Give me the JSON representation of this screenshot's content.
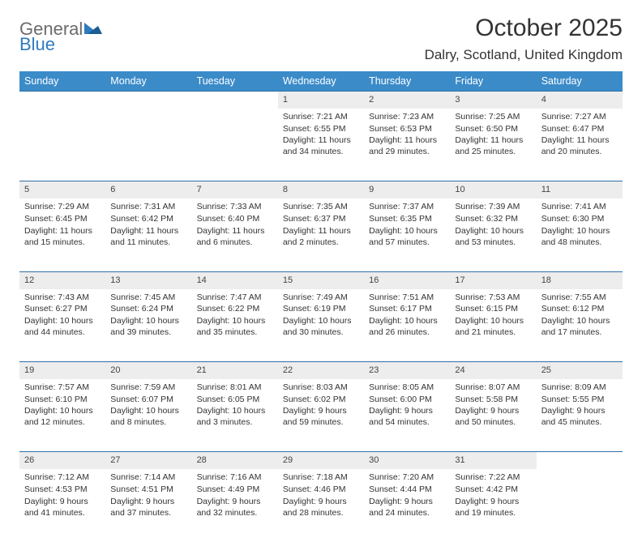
{
  "logo": {
    "word1": "General",
    "word2": "Blue"
  },
  "title": "October 2025",
  "location": "Dalry, Scotland, United Kingdom",
  "colors": {
    "header_bg": "#3b8bc9",
    "header_text": "#ffffff",
    "daynum_bg": "#ededed",
    "border": "#2f6fa6",
    "logo_gray": "#6b6b6b",
    "logo_blue": "#2f7bbf",
    "text": "#333333"
  },
  "day_headers": [
    "Sunday",
    "Monday",
    "Tuesday",
    "Wednesday",
    "Thursday",
    "Friday",
    "Saturday"
  ],
  "weeks": [
    [
      null,
      null,
      null,
      {
        "n": "1",
        "sunrise": "7:21 AM",
        "sunset": "6:55 PM",
        "daylight": "11 hours and 34 minutes."
      },
      {
        "n": "2",
        "sunrise": "7:23 AM",
        "sunset": "6:53 PM",
        "daylight": "11 hours and 29 minutes."
      },
      {
        "n": "3",
        "sunrise": "7:25 AM",
        "sunset": "6:50 PM",
        "daylight": "11 hours and 25 minutes."
      },
      {
        "n": "4",
        "sunrise": "7:27 AM",
        "sunset": "6:47 PM",
        "daylight": "11 hours and 20 minutes."
      }
    ],
    [
      {
        "n": "5",
        "sunrise": "7:29 AM",
        "sunset": "6:45 PM",
        "daylight": "11 hours and 15 minutes."
      },
      {
        "n": "6",
        "sunrise": "7:31 AM",
        "sunset": "6:42 PM",
        "daylight": "11 hours and 11 minutes."
      },
      {
        "n": "7",
        "sunrise": "7:33 AM",
        "sunset": "6:40 PM",
        "daylight": "11 hours and 6 minutes."
      },
      {
        "n": "8",
        "sunrise": "7:35 AM",
        "sunset": "6:37 PM",
        "daylight": "11 hours and 2 minutes."
      },
      {
        "n": "9",
        "sunrise": "7:37 AM",
        "sunset": "6:35 PM",
        "daylight": "10 hours and 57 minutes."
      },
      {
        "n": "10",
        "sunrise": "7:39 AM",
        "sunset": "6:32 PM",
        "daylight": "10 hours and 53 minutes."
      },
      {
        "n": "11",
        "sunrise": "7:41 AM",
        "sunset": "6:30 PM",
        "daylight": "10 hours and 48 minutes."
      }
    ],
    [
      {
        "n": "12",
        "sunrise": "7:43 AM",
        "sunset": "6:27 PM",
        "daylight": "10 hours and 44 minutes."
      },
      {
        "n": "13",
        "sunrise": "7:45 AM",
        "sunset": "6:24 PM",
        "daylight": "10 hours and 39 minutes."
      },
      {
        "n": "14",
        "sunrise": "7:47 AM",
        "sunset": "6:22 PM",
        "daylight": "10 hours and 35 minutes."
      },
      {
        "n": "15",
        "sunrise": "7:49 AM",
        "sunset": "6:19 PM",
        "daylight": "10 hours and 30 minutes."
      },
      {
        "n": "16",
        "sunrise": "7:51 AM",
        "sunset": "6:17 PM",
        "daylight": "10 hours and 26 minutes."
      },
      {
        "n": "17",
        "sunrise": "7:53 AM",
        "sunset": "6:15 PM",
        "daylight": "10 hours and 21 minutes."
      },
      {
        "n": "18",
        "sunrise": "7:55 AM",
        "sunset": "6:12 PM",
        "daylight": "10 hours and 17 minutes."
      }
    ],
    [
      {
        "n": "19",
        "sunrise": "7:57 AM",
        "sunset": "6:10 PM",
        "daylight": "10 hours and 12 minutes."
      },
      {
        "n": "20",
        "sunrise": "7:59 AM",
        "sunset": "6:07 PM",
        "daylight": "10 hours and 8 minutes."
      },
      {
        "n": "21",
        "sunrise": "8:01 AM",
        "sunset": "6:05 PM",
        "daylight": "10 hours and 3 minutes."
      },
      {
        "n": "22",
        "sunrise": "8:03 AM",
        "sunset": "6:02 PM",
        "daylight": "9 hours and 59 minutes."
      },
      {
        "n": "23",
        "sunrise": "8:05 AM",
        "sunset": "6:00 PM",
        "daylight": "9 hours and 54 minutes."
      },
      {
        "n": "24",
        "sunrise": "8:07 AM",
        "sunset": "5:58 PM",
        "daylight": "9 hours and 50 minutes."
      },
      {
        "n": "25",
        "sunrise": "8:09 AM",
        "sunset": "5:55 PM",
        "daylight": "9 hours and 45 minutes."
      }
    ],
    [
      {
        "n": "26",
        "sunrise": "7:12 AM",
        "sunset": "4:53 PM",
        "daylight": "9 hours and 41 minutes."
      },
      {
        "n": "27",
        "sunrise": "7:14 AM",
        "sunset": "4:51 PM",
        "daylight": "9 hours and 37 minutes."
      },
      {
        "n": "28",
        "sunrise": "7:16 AM",
        "sunset": "4:49 PM",
        "daylight": "9 hours and 32 minutes."
      },
      {
        "n": "29",
        "sunrise": "7:18 AM",
        "sunset": "4:46 PM",
        "daylight": "9 hours and 28 minutes."
      },
      {
        "n": "30",
        "sunrise": "7:20 AM",
        "sunset": "4:44 PM",
        "daylight": "9 hours and 24 minutes."
      },
      {
        "n": "31",
        "sunrise": "7:22 AM",
        "sunset": "4:42 PM",
        "daylight": "9 hours and 19 minutes."
      },
      null
    ]
  ],
  "labels": {
    "sunrise": "Sunrise:",
    "sunset": "Sunset:",
    "daylight": "Daylight:"
  }
}
